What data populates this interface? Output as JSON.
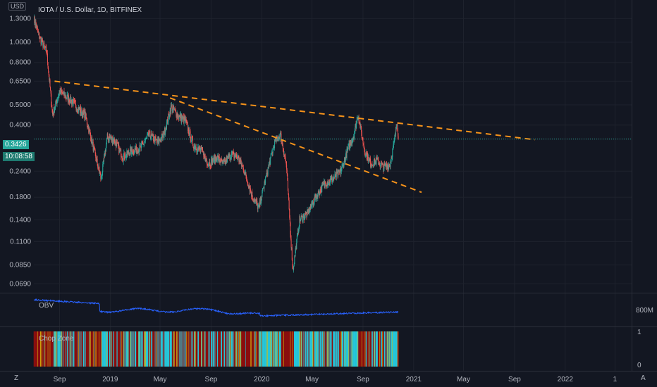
{
  "header": {
    "title": "IOTA / U.S. Dollar, 1D, BITFINEX",
    "currency_badge": "USD"
  },
  "price": {
    "last": "0.3426",
    "countdown": "10:08:58"
  },
  "panels": {
    "obv": {
      "label": "OBV",
      "axis_label": "800M"
    },
    "chop": {
      "label": "Chop Zone",
      "axis_top": "1",
      "axis_bottom": "0"
    }
  },
  "bottom": {
    "left_button": "Z",
    "right_button": "A"
  },
  "colors": {
    "up": "#26a69a",
    "down": "#ef5350",
    "trend": "#f7931a",
    "obv": "#2962ff",
    "chop_red": "#8b0f0f",
    "chop_teal": "#26c6da",
    "chop_yellow": "#d9b80d",
    "price_tag": "#26a69a"
  },
  "chart_data": {
    "type": "candlestick",
    "title": "IOTA / U.S. Dollar, 1D, BITFINEX",
    "y_scale": "log",
    "y_ticks": [
      "1.3000",
      "1.0000",
      "0.8000",
      "0.6500",
      "0.5000",
      "0.4000",
      "0.3426",
      "0.2400",
      "0.1800",
      "0.1400",
      "0.1100",
      "0.0850",
      "0.0690"
    ],
    "y_tick_values": [
      1.3,
      1.0,
      0.8,
      0.65,
      0.5,
      0.4,
      0.3426,
      0.24,
      0.18,
      0.14,
      0.11,
      0.085,
      0.069
    ],
    "x_ticks": [
      "Sep",
      "2019",
      "May",
      "Sep",
      "2020",
      "May",
      "Sep",
      "2021",
      "May",
      "Sep",
      "2022",
      "1"
    ],
    "x_tick_dates": [
      "2018-09-01",
      "2019-01-01",
      "2019-05-01",
      "2019-09-01",
      "2020-01-01",
      "2020-05-01",
      "2020-09-01",
      "2021-01-01",
      "2021-05-01",
      "2021-09-01",
      "2022-01-01",
      "2022-05-01"
    ],
    "price_path": [
      [
        "2018-07-01",
        1.3
      ],
      [
        "2018-07-15",
        1.05
      ],
      [
        "2018-08-01",
        0.9
      ],
      [
        "2018-08-15",
        0.45
      ],
      [
        "2018-09-01",
        0.58
      ],
      [
        "2018-09-15",
        0.55
      ],
      [
        "2018-10-01",
        0.52
      ],
      [
        "2018-10-15",
        0.48
      ],
      [
        "2018-11-01",
        0.45
      ],
      [
        "2018-11-20",
        0.32
      ],
      [
        "2018-12-10",
        0.22
      ],
      [
        "2018-12-25",
        0.35
      ],
      [
        "2019-01-10",
        0.34
      ],
      [
        "2019-02-01",
        0.28
      ],
      [
        "2019-02-20",
        0.3
      ],
      [
        "2019-03-15",
        0.31
      ],
      [
        "2019-04-05",
        0.36
      ],
      [
        "2019-04-25",
        0.33
      ],
      [
        "2019-05-10",
        0.36
      ],
      [
        "2019-05-28",
        0.49
      ],
      [
        "2019-06-15",
        0.44
      ],
      [
        "2019-07-01",
        0.42
      ],
      [
        "2019-07-20",
        0.32
      ],
      [
        "2019-08-10",
        0.3
      ],
      [
        "2019-08-25",
        0.26
      ],
      [
        "2019-09-15",
        0.28
      ],
      [
        "2019-10-01",
        0.26
      ],
      [
        "2019-10-20",
        0.29
      ],
      [
        "2019-11-05",
        0.28
      ],
      [
        "2019-11-20",
        0.24
      ],
      [
        "2019-12-10",
        0.18
      ],
      [
        "2019-12-25",
        0.16
      ],
      [
        "2020-01-10",
        0.22
      ],
      [
        "2020-02-01",
        0.33
      ],
      [
        "2020-02-15",
        0.36
      ],
      [
        "2020-02-29",
        0.26
      ],
      [
        "2020-03-13",
        0.1
      ],
      [
        "2020-03-16",
        0.08
      ],
      [
        "2020-04-01",
        0.14
      ],
      [
        "2020-04-20",
        0.15
      ],
      [
        "2020-05-10",
        0.18
      ],
      [
        "2020-06-01",
        0.21
      ],
      [
        "2020-06-20",
        0.22
      ],
      [
        "2020-07-10",
        0.24
      ],
      [
        "2020-07-25",
        0.3
      ],
      [
        "2020-08-10",
        0.36
      ],
      [
        "2020-08-20",
        0.45
      ],
      [
        "2020-09-05",
        0.3
      ],
      [
        "2020-09-20",
        0.26
      ],
      [
        "2020-10-05",
        0.27
      ],
      [
        "2020-10-20",
        0.25
      ],
      [
        "2020-11-05",
        0.26
      ],
      [
        "2020-11-15",
        0.33
      ],
      [
        "2020-11-22",
        0.42
      ],
      [
        "2020-11-25",
        0.3426
      ]
    ],
    "trendlines": [
      {
        "from": [
          "2018-08-20",
          0.65
        ],
        "to": [
          "2021-10-20",
          0.34
        ]
      },
      {
        "from": [
          "2019-05-25",
          0.54
        ],
        "to": [
          "2021-01-20",
          0.19
        ]
      }
    ],
    "last_price": 0.3426
  }
}
